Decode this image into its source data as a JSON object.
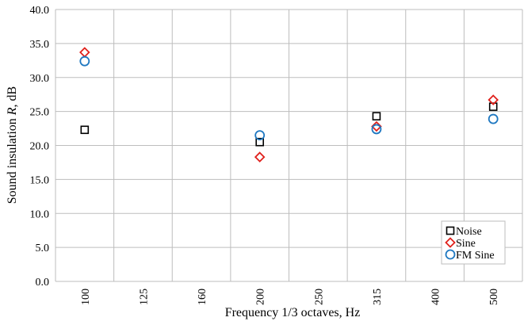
{
  "chart_data": {
    "type": "scatter",
    "title": "",
    "xlabel": "Frequency 1/3 octaves, Hz",
    "ylabel_prefix": "Sound insulation ",
    "ylabel_var": "R",
    "ylabel_suffix": ", dB",
    "categories": [
      "100",
      "125",
      "160",
      "200",
      "250",
      "315",
      "400",
      "500"
    ],
    "y_ticks": [
      "0.0",
      "5.0",
      "10.0",
      "15.0",
      "20.0",
      "25.0",
      "30.0",
      "35.0",
      "40.0"
    ],
    "ylim": [
      0,
      40
    ],
    "grid": true,
    "legend_position": "bottom-right",
    "series": [
      {
        "name": "Noise",
        "marker": "square",
        "color": "#000000",
        "points": [
          {
            "x": "100",
            "y": 22.3
          },
          {
            "x": "200",
            "y": 20.5
          },
          {
            "x": "315",
            "y": 24.3
          },
          {
            "x": "500",
            "y": 25.7
          }
        ]
      },
      {
        "name": "Sine",
        "marker": "diamond",
        "color": "#e0201b",
        "points": [
          {
            "x": "100",
            "y": 33.7
          },
          {
            "x": "200",
            "y": 18.3
          },
          {
            "x": "315",
            "y": 22.8
          },
          {
            "x": "500",
            "y": 26.7
          }
        ]
      },
      {
        "name": "FM Sine",
        "marker": "circle",
        "color": "#1f78c1",
        "points": [
          {
            "x": "100",
            "y": 32.4
          },
          {
            "x": "200",
            "y": 21.5
          },
          {
            "x": "315",
            "y": 22.4
          },
          {
            "x": "500",
            "y": 23.9
          }
        ]
      }
    ]
  }
}
